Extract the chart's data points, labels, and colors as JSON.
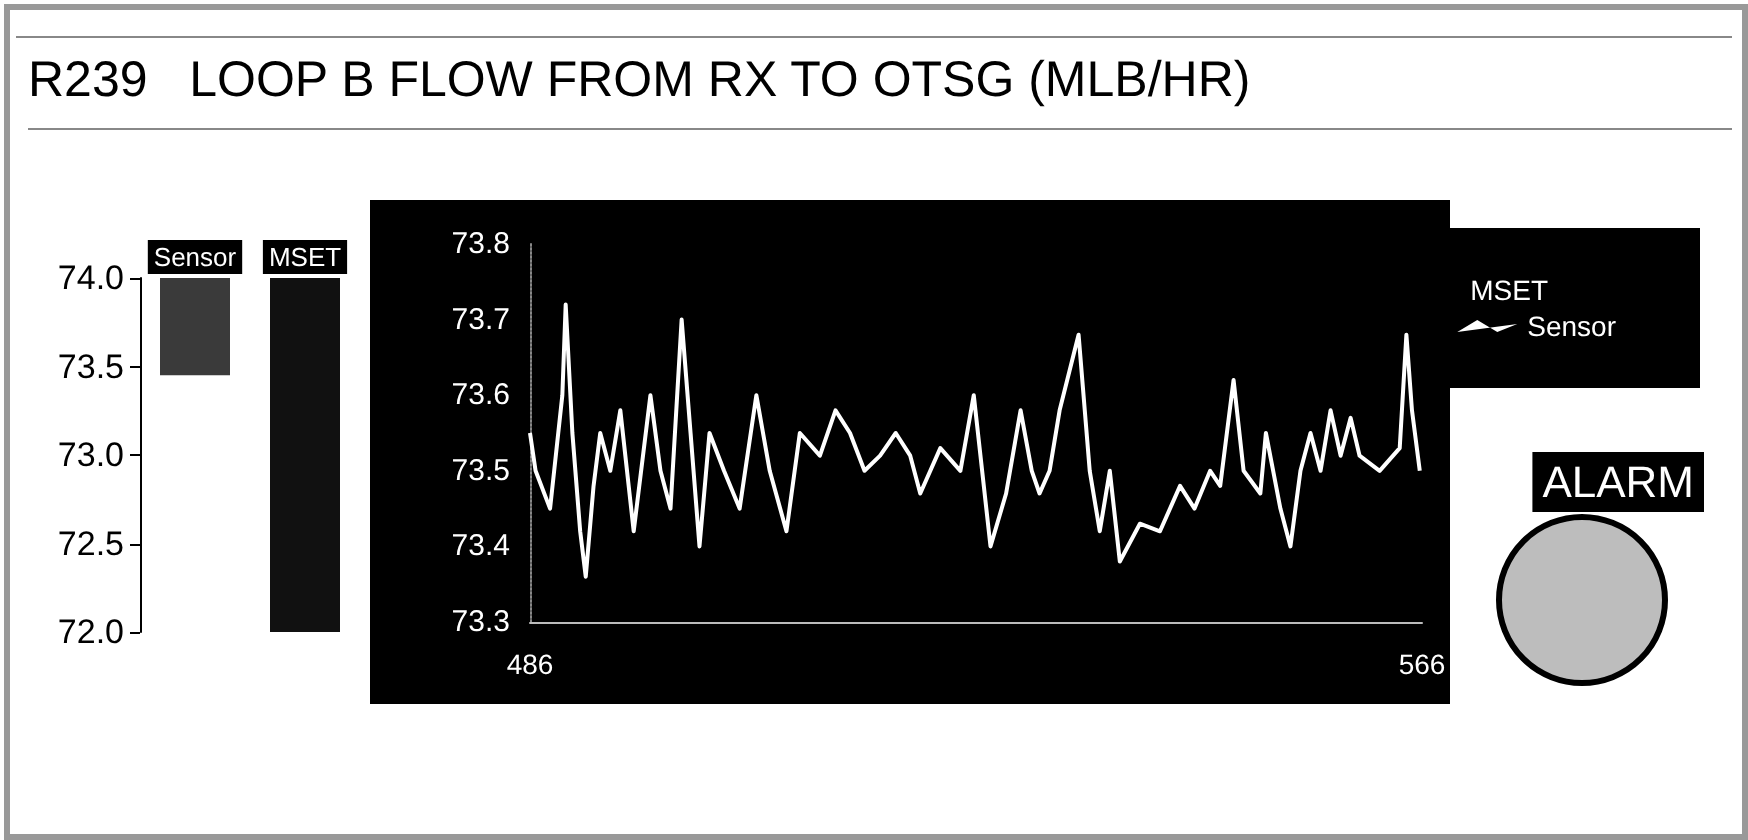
{
  "chart_data": [
    {
      "type": "bar",
      "title": "R239   LOOP B FLOW FROM RX TO OTSG (MLB/HR)",
      "categories": [
        "Sensor",
        "MSET"
      ],
      "base": [
        73.45,
        72.0
      ],
      "values": [
        0.55,
        2.0
      ],
      "colors": [
        "#3a3a3a",
        "#111111"
      ],
      "ylim": [
        72.0,
        74.0
      ],
      "yticks": [
        {
          "value": 72,
          "label": "72.0"
        },
        {
          "value": 72.5,
          "label": "72.5"
        },
        {
          "value": 73,
          "label": "73.0"
        },
        {
          "value": 73.5,
          "label": "73.5"
        },
        {
          "value": 74,
          "label": "74.0"
        }
      ],
      "grid": false,
      "legend": false
    },
    {
      "type": "line",
      "annotations": [
        "MSET",
        "ALARM"
      ],
      "legend": "right",
      "grid": false,
      "marker": "none",
      "line_style": "solid",
      "xlim": [
        486,
        566
      ],
      "xticks": [
        486,
        566
      ],
      "ylim": [
        73.3,
        73.8
      ],
      "yticks": [
        73.3,
        73.4,
        73.5,
        73.6,
        73.7,
        73.8
      ],
      "series": [
        {
          "name": "Sensor",
          "color": "#ffffff",
          "x": [
            486,
            486.5,
            487.8,
            488.9,
            489.2,
            489.8,
            490.5,
            491,
            491.7,
            492.3,
            493.2,
            494.1,
            495.3,
            496.8,
            497.7,
            498.6,
            499.6,
            500.4,
            501.2,
            502.1,
            503.4,
            504.8,
            506.3,
            507.5,
            509,
            510.2,
            512,
            513.4,
            514.7,
            516,
            517.4,
            518.8,
            520.1,
            521,
            522.8,
            524.6,
            525.8,
            527.3,
            528.7,
            530,
            531,
            531.7,
            532.6,
            533.5,
            535.2,
            536.2,
            537.1,
            538,
            538.9,
            540.7,
            542.5,
            544.3,
            545.6,
            547,
            547.9,
            549.1,
            550,
            551.5,
            552,
            553.3,
            554.2,
            555.1,
            556,
            556.9,
            557.8,
            558.7,
            559.6,
            560.4,
            562.2,
            564,
            564.6,
            565.1,
            565.8
          ],
          "values": [
            73.55,
            73.5,
            73.45,
            73.6,
            73.72,
            73.55,
            73.42,
            73.36,
            73.48,
            73.55,
            73.5,
            73.58,
            73.42,
            73.6,
            73.5,
            73.45,
            73.7,
            73.55,
            73.4,
            73.55,
            73.5,
            73.45,
            73.6,
            73.5,
            73.42,
            73.55,
            73.52,
            73.58,
            73.55,
            73.5,
            73.52,
            73.55,
            73.52,
            73.47,
            73.53,
            73.5,
            73.6,
            73.4,
            73.47,
            73.58,
            73.5,
            73.47,
            73.5,
            73.58,
            73.68,
            73.5,
            73.42,
            73.5,
            73.38,
            73.43,
            73.42,
            73.48,
            73.45,
            73.5,
            73.48,
            73.62,
            73.5,
            73.47,
            73.55,
            73.45,
            73.4,
            73.5,
            73.55,
            73.5,
            73.58,
            73.52,
            73.57,
            73.52,
            73.5,
            73.53,
            73.68,
            73.58,
            73.5
          ]
        }
      ]
    }
  ]
}
